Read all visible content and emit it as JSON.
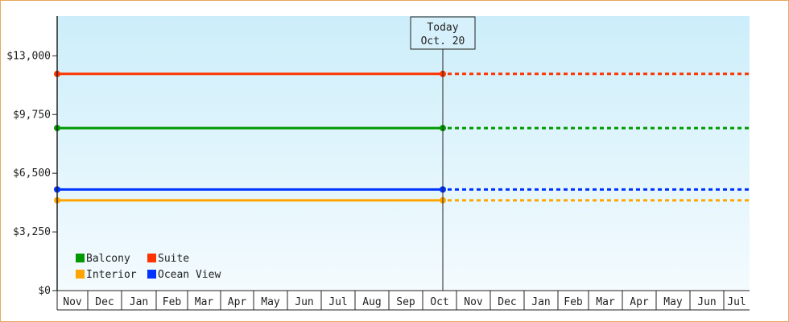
{
  "chart_data": {
    "type": "line",
    "currency_prefix": "$",
    "y_ticks": [
      "$0",
      "$3,250",
      "$6,500",
      "$9,750",
      "$13,000"
    ],
    "y_tick_values": [
      0,
      3250,
      6500,
      9750,
      13000
    ],
    "ylim": [
      0,
      15200
    ],
    "x_months": [
      "Nov",
      "Dec",
      "Jan",
      "Feb",
      "Mar",
      "Apr",
      "May",
      "Jun",
      "Jul",
      "Aug",
      "Sep",
      "Oct",
      "Nov",
      "Dec",
      "Jan",
      "Feb",
      "Mar",
      "Apr",
      "May",
      "Jun",
      "Jul"
    ],
    "today_index": 11,
    "today_marker": {
      "line1": "Today",
      "line2": "Oct. 20"
    },
    "series": [
      {
        "name": "Suite",
        "color": "#ff3300",
        "values": [
          12000,
          12000
        ],
        "forecast": 12000
      },
      {
        "name": "Balcony",
        "color": "#009900",
        "values": [
          9000,
          9000
        ],
        "forecast": 9000
      },
      {
        "name": "Ocean View",
        "color": "#0033ff",
        "values": [
          5600,
          5600
        ],
        "forecast": 5600
      },
      {
        "name": "Interior",
        "color": "#ffa500",
        "values": [
          5000,
          5000
        ],
        "forecast": 5000
      }
    ],
    "legend": [
      [
        "Balcony",
        "Suite"
      ],
      [
        "Interior",
        "Ocean View"
      ]
    ],
    "legend_placement": "bottom-left",
    "background_gradient": [
      "#cceefa",
      "#f4fbfe"
    ]
  }
}
